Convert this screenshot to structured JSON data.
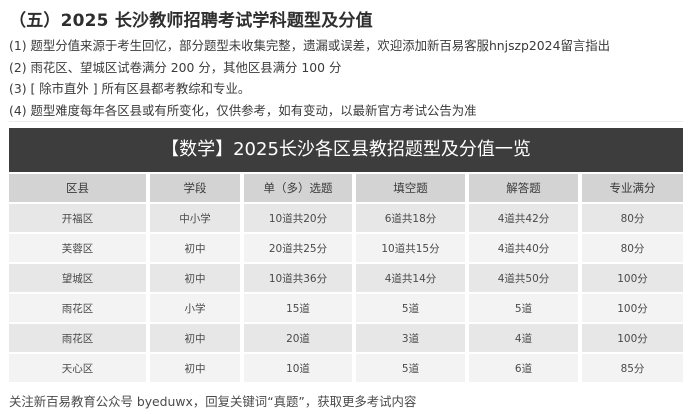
{
  "heading": "（五）2025 长沙教师招聘考试学科题型及分值",
  "notes": [
    "(1) 题型分值来源于考生回忆，部分题型未收集完整，遗漏或误差，欢迎添加新百易客服hnjszp2024留言指出",
    "(2) 雨花区、望城区试卷满分 200 分，其他区县满分 100 分",
    "(3) [ 除市直外 ] 所有区县都考教综和专业。",
    "(4) 题型难度每年各区县或有所变化，仅供参考，如有变动，以最新官方考试公告为准"
  ],
  "table": {
    "title": "【数学】2025长沙各区县教招题型及分值一览",
    "headers": [
      "区县",
      "学段",
      "单（多）选题",
      "填空题",
      "解答题",
      "专业满分"
    ],
    "rows": [
      [
        "开福区",
        "中小学",
        "10道共20分",
        "6道共18分",
        "4道共42分",
        "80分"
      ],
      [
        "芙蓉区",
        "初中",
        "20道共25分",
        "10道共15分",
        "4道共40分",
        "80分"
      ],
      [
        "望城区",
        "初中",
        "10道共36分",
        "4道共14分",
        "4道共50分",
        "100分"
      ],
      [
        "雨花区",
        "小学",
        "15道",
        "5道",
        "5道",
        "100分"
      ],
      [
        "雨花区",
        "初中",
        "20道",
        "3道",
        "4道",
        "100分"
      ],
      [
        "天心区",
        "初中",
        "10道",
        "5道",
        "6道",
        "85分"
      ]
    ]
  },
  "footer": "关注新百易教育公众号 byeduwx，回复关键词“真题”，获取更多考试内容",
  "colors": {
    "title_bar": "#3d3d3d",
    "header_row": "#d3d3d3",
    "row_dark": "#e7e7e7",
    "row_light": "#f3f3f3"
  }
}
